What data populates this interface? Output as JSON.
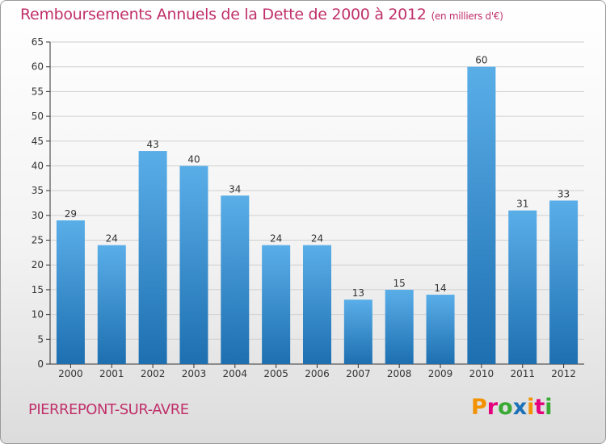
{
  "header": {
    "title": "Remboursements Annuels de la Dette de 2000 à 2012",
    "unit": "(en milliers d'€)"
  },
  "footer": {
    "commune": "PIERREPONT-SUR-AVRE",
    "logo_text": "Proxiti",
    "logo_colors": [
      "#f39200",
      "#e4007c",
      "#3aaa35",
      "#1d71b8",
      "#f39200",
      "#e4007c",
      "#3aaa35"
    ]
  },
  "colors": {
    "title": "#c0306a",
    "bar_top": "#5aaee8",
    "bar_bottom": "#1d6fb0",
    "grid": "#d0d0d0",
    "axis": "#333333"
  },
  "chart_data": {
    "type": "bar",
    "title": "Remboursements Annuels de la Dette de 2000 à 2012",
    "xlabel": "",
    "ylabel": "",
    "categories": [
      "2000",
      "2001",
      "2002",
      "2003",
      "2004",
      "2005",
      "2006",
      "2007",
      "2008",
      "2009",
      "2010",
      "2011",
      "2012"
    ],
    "values": [
      29,
      24,
      43,
      40,
      34,
      24,
      24,
      13,
      15,
      14,
      60,
      31,
      33
    ],
    "ylim": [
      0,
      65
    ],
    "yticks": [
      0,
      5,
      10,
      15,
      20,
      25,
      30,
      35,
      40,
      45,
      50,
      55,
      60,
      65
    ],
    "grid": true,
    "data_labels": true
  }
}
